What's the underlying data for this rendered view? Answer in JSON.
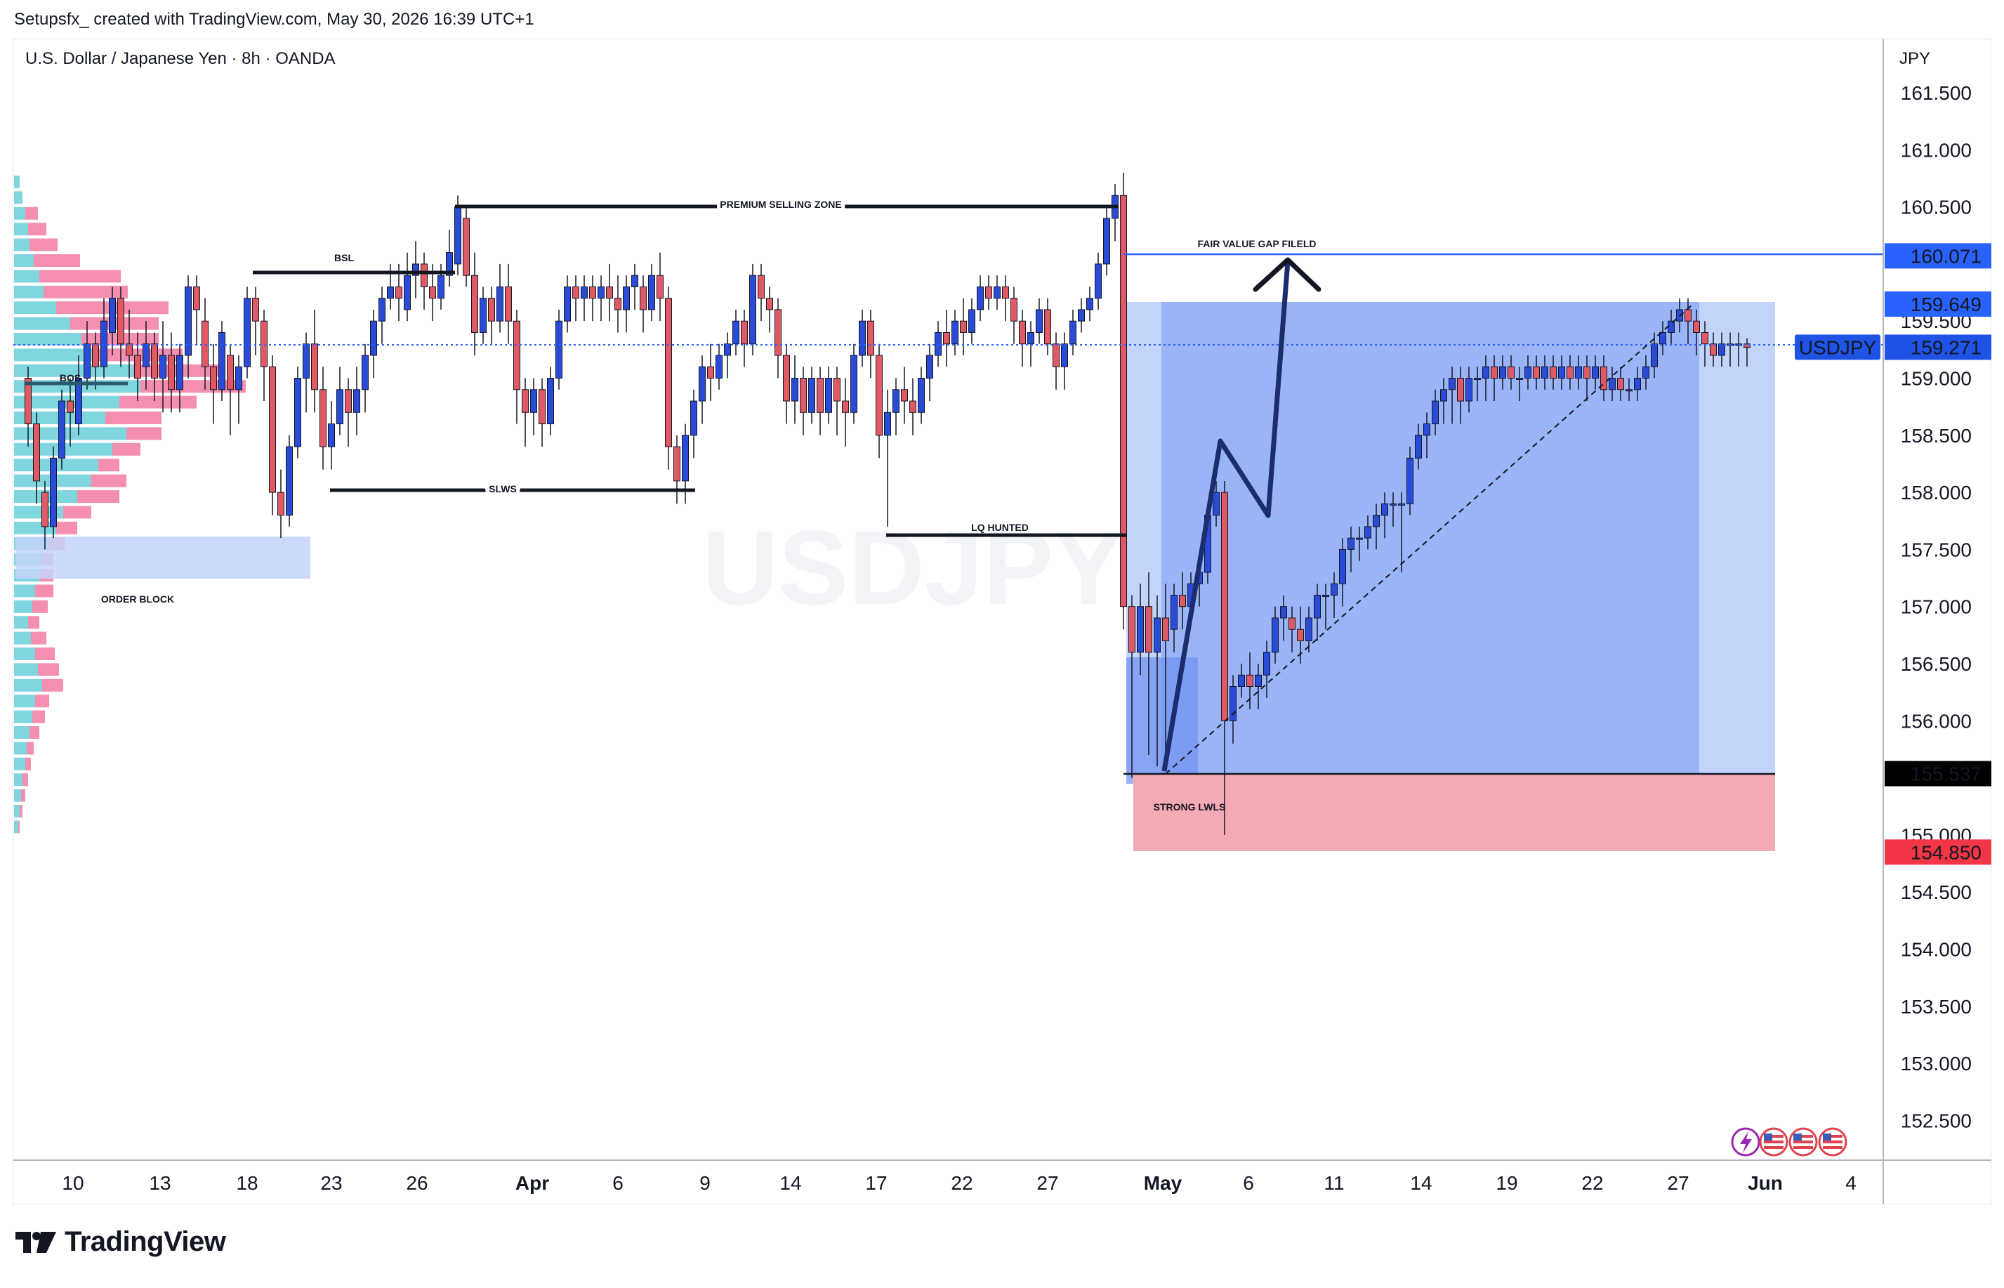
{
  "header": {
    "credit": "Setupsfx_ created with TradingView.com, May 30, 2026 16:39 UTC+1"
  },
  "chart": {
    "title": "U.S. Dollar / Japanese Yen · 8h · OANDA",
    "unit": "JPY",
    "watermark": "USDJPY"
  },
  "price_axis": {
    "ticks": [
      "161.500",
      "161.000",
      "160.500",
      "159.500",
      "159.000",
      "158.500",
      "158.000",
      "157.500",
      "157.000",
      "156.500",
      "156.000",
      "155.000",
      "154.500",
      "154.000",
      "153.500",
      "153.000",
      "152.500"
    ],
    "tick_values": [
      161.5,
      161.0,
      160.5,
      159.5,
      159.0,
      158.5,
      158.0,
      157.5,
      157.0,
      156.5,
      156.0,
      155.0,
      154.5,
      154.0,
      153.5,
      153.0,
      152.5
    ],
    "badges": [
      {
        "value": 160.071,
        "text": "160.071",
        "color": "#2962ff",
        "text_color": "#ffffff"
      },
      {
        "value": 159.649,
        "text": "159.649",
        "color": "#2962ff",
        "text_color": "#ffffff"
      },
      {
        "value": 159.271,
        "text": "159.271",
        "color": "#1e53e5",
        "text_color": "#ffffff",
        "label": "USDJPY"
      },
      {
        "value": 155.537,
        "text": "155.537",
        "color": "#000000",
        "text_color": "#ffffff"
      },
      {
        "value": 154.85,
        "text": "154.850",
        "color": "#f23645",
        "text_color": "#ffffff"
      }
    ]
  },
  "time_axis": {
    "labels": [
      "10",
      "13",
      "18",
      "23",
      "26",
      "Apr",
      "6",
      "9",
      "14",
      "17",
      "22",
      "27",
      "May",
      "6",
      "11",
      "14",
      "19",
      "22",
      "27",
      "Jun",
      "4"
    ],
    "bold": [
      "Apr",
      "May",
      "Jun"
    ]
  },
  "annotations": {
    "bos": "BOS",
    "bsl": "BSL",
    "premium_selling_zone": "PREMIUM SELLING ZONE",
    "fair_value_gap": "FAIR VALUE GAP FILELD",
    "slws": "SLWS",
    "lq_hunted": "LQ HUNTED",
    "order_block": "ORDER BLOCK",
    "strong_lwls": "STRONG LWLS"
  },
  "footer": {
    "brand": "TradingView"
  },
  "colors": {
    "bull": "#2a4bd7",
    "bear": "#e05a66",
    "vp_up": "#7fd6df",
    "vp_down": "#f48fb1",
    "zone_blue": "#8fa9f7",
    "zone_light": "#c3d4fb",
    "stop_zone": "#f4aab5"
  },
  "chart_data": {
    "type": "candlestick",
    "price_range": [
      152.2,
      161.75
    ],
    "current_price": 159.271,
    "levels": {
      "fair_value_gap": 160.071,
      "target_zone_top": 159.649,
      "entry": 155.537,
      "stop": 154.85,
      "premium_selling_zone": 160.5,
      "bsl": 159.1,
      "slws": 157.98,
      "lq_hunted": 157.6,
      "bos": 158.85
    }
  }
}
